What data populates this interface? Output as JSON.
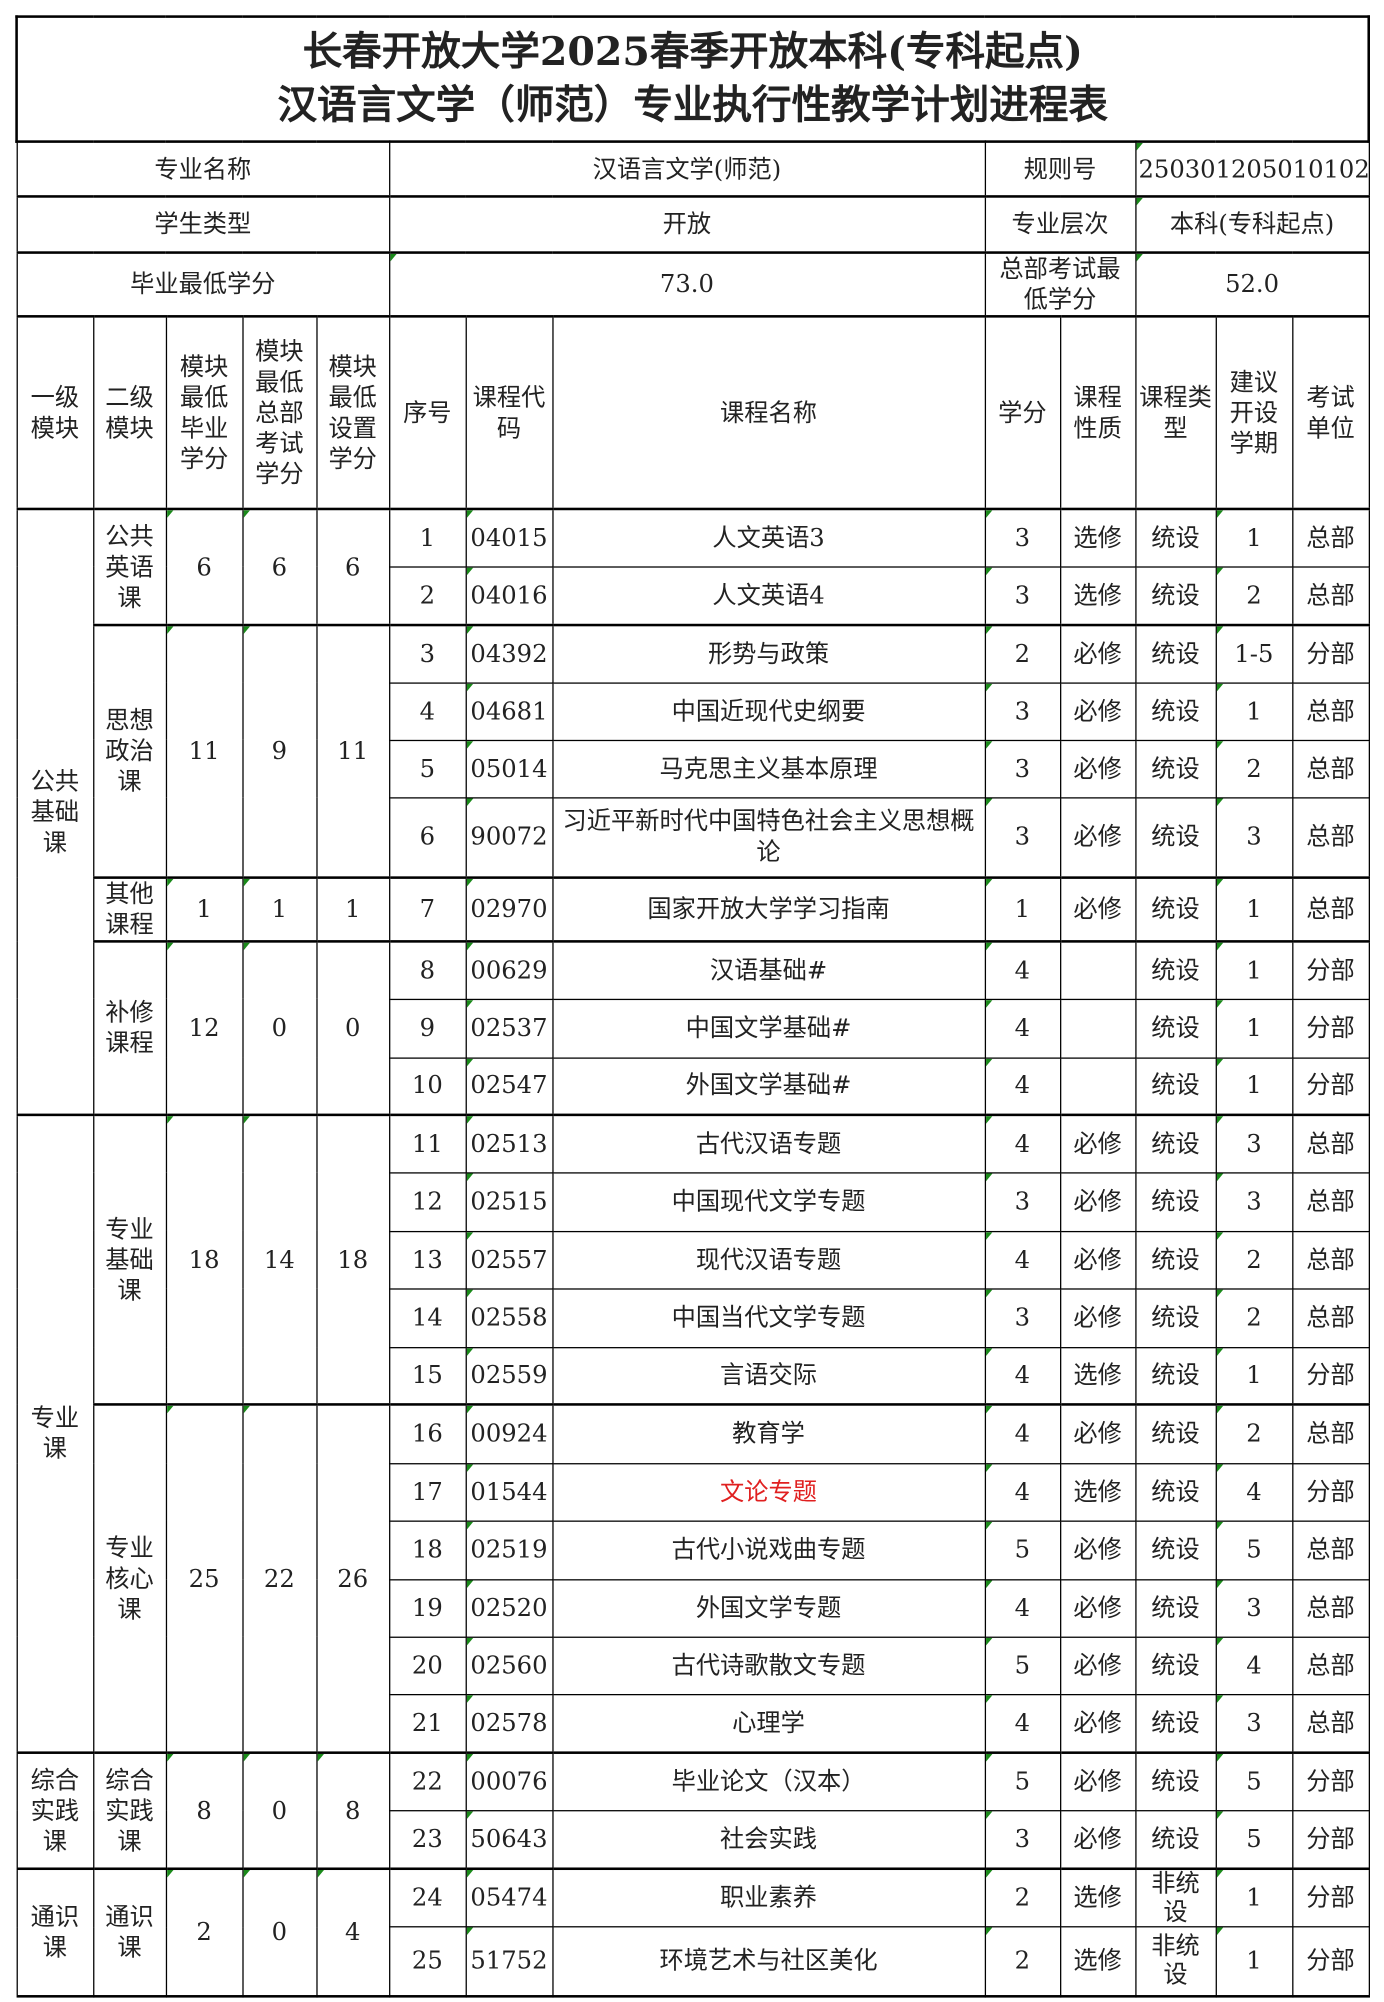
{
  "title_line1": "长春开放大学2025春季开放本科(专科起点)",
  "title_line2": "汉语言文学（师范）专业执行性教学计划进程表",
  "info": [
    [
      "专业名称",
      "汉语言文学(师范)",
      "规则号",
      "250301205010102"
    ],
    [
      "学生类型",
      "开放",
      "专业层次",
      "本科(专科起点)"
    ],
    [
      "毕业最低学分",
      "73.0",
      "总部考试最低学分",
      "52.0"
    ]
  ],
  "headers": [
    "一级模块",
    "二级模块",
    "模块最低毕业学分",
    "模块最低总部考试学分",
    "模块最低设置学分",
    "序号",
    "课程代码",
    "课程名称",
    "学分",
    "课程性质",
    "课程类型",
    "建议开设学期",
    "考试单位"
  ],
  "level1": [
    {
      "name": "公共基础课",
      "rows": 10
    },
    {
      "name": "专业课",
      "rows": 11
    },
    {
      "name": "综合实践课",
      "rows": 2
    },
    {
      "name": "通识课",
      "rows": 2
    }
  ],
  "level2": [
    {
      "name": "公共英语课",
      "rows": 2,
      "grad": "6",
      "hq": "6",
      "set": "6"
    },
    {
      "name": "思想政治课",
      "rows": 4,
      "grad": "11",
      "hq": "9",
      "set": "11"
    },
    {
      "name": "其他课程",
      "rows": 1,
      "grad": "1",
      "hq": "1",
      "set": "1"
    },
    {
      "name": "补修课程",
      "rows": 3,
      "grad": "12",
      "hq": "0",
      "set": "0"
    },
    {
      "name": "专业基础课",
      "rows": 5,
      "grad": "18",
      "hq": "14",
      "set": "18"
    },
    {
      "name": "专业核心课",
      "rows": 6,
      "grad": "25",
      "hq": "22",
      "set": "26"
    },
    {
      "name": "综合实践课",
      "rows": 2,
      "grad": "8",
      "hq": "0",
      "set": "8"
    },
    {
      "name": "通识课",
      "rows": 2,
      "grad": "2",
      "hq": "0",
      "set": "4"
    }
  ],
  "courses": [
    [
      "1",
      "04015",
      "人文英语3",
      "3",
      "选修",
      "统设",
      "1",
      "总部"
    ],
    [
      "2",
      "04016",
      "人文英语4",
      "3",
      "选修",
      "统设",
      "2",
      "总部"
    ],
    [
      "3",
      "04392",
      "形势与政策",
      "2",
      "必修",
      "统设",
      "1-5",
      "分部"
    ],
    [
      "4",
      "04681",
      "中国近现代史纲要",
      "3",
      "必修",
      "统设",
      "1",
      "总部"
    ],
    [
      "5",
      "05014",
      "马克思主义基本原理",
      "3",
      "必修",
      "统设",
      "2",
      "总部"
    ],
    [
      "6",
      "90072",
      "习近平新时代中国特色社会主义思想概论",
      "3",
      "必修",
      "统设",
      "3",
      "总部"
    ],
    [
      "7",
      "02970",
      "国家开放大学学习指南",
      "1",
      "必修",
      "统设",
      "1",
      "总部"
    ],
    [
      "8",
      "00629",
      "汉语基础#",
      "4",
      "",
      "统设",
      "1",
      "分部"
    ],
    [
      "9",
      "02537",
      "中国文学基础#",
      "4",
      "",
      "统设",
      "1",
      "分部"
    ],
    [
      "10",
      "02547",
      "外国文学基础#",
      "4",
      "",
      "统设",
      "1",
      "分部"
    ],
    [
      "11",
      "02513",
      "古代汉语专题",
      "4",
      "必修",
      "统设",
      "3",
      "总部"
    ],
    [
      "12",
      "02515",
      "中国现代文学专题",
      "3",
      "必修",
      "统设",
      "3",
      "总部"
    ],
    [
      "13",
      "02557",
      "现代汉语专题",
      "4",
      "必修",
      "统设",
      "2",
      "总部"
    ],
    [
      "14",
      "02558",
      "中国当代文学专题",
      "3",
      "必修",
      "统设",
      "2",
      "总部"
    ],
    [
      "15",
      "02559",
      "言语交际",
      "4",
      "选修",
      "统设",
      "1",
      "分部"
    ],
    [
      "16",
      "00924",
      "教育学",
      "4",
      "必修",
      "统设",
      "2",
      "总部"
    ],
    [
      "17",
      "01544",
      "文论专题",
      "4",
      "选修",
      "统设",
      "4",
      "分部"
    ],
    [
      "18",
      "02519",
      "古代小说戏曲专题",
      "5",
      "必修",
      "统设",
      "5",
      "总部"
    ],
    [
      "19",
      "02520",
      "外国文学专题",
      "4",
      "必修",
      "统设",
      "3",
      "总部"
    ],
    [
      "20",
      "02560",
      "古代诗歌散文专题",
      "5",
      "必修",
      "统设",
      "4",
      "总部"
    ],
    [
      "21",
      "02578",
      "心理学",
      "4",
      "必修",
      "统设",
      "3",
      "总部"
    ],
    [
      "22",
      "00076",
      "毕业论文（汉本）",
      "5",
      "必修",
      "统设",
      "5",
      "分部"
    ],
    [
      "23",
      "50643",
      "社会实践",
      "3",
      "必修",
      "统设",
      "5",
      "分部"
    ],
    [
      "24",
      "05474",
      "职业素养",
      "2",
      "选修",
      "非统设",
      "1",
      "分部"
    ],
    [
      "25",
      "51752",
      "环境艺术与社区美化",
      "2",
      "选修",
      "非统设",
      "1",
      "分部"
    ]
  ],
  "highlight_color": "#e02020",
  "highlight_course_index": 16
}
